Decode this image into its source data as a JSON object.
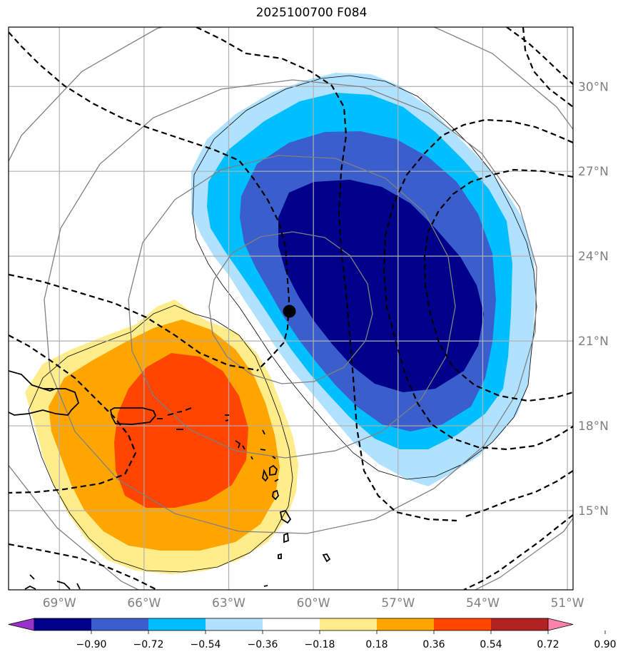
{
  "title": "2025100700 F084",
  "map": {
    "lon_range": [
      -70.8,
      -50.8
    ],
    "lat_range": [
      12.2,
      32.1
    ],
    "lon_ticks": [
      {
        "value": -69,
        "label": "69°W"
      },
      {
        "value": -66,
        "label": "66°W"
      },
      {
        "value": -63,
        "label": "63°W"
      },
      {
        "value": -60,
        "label": "60°W"
      },
      {
        "value": -57,
        "label": "57°W"
      },
      {
        "value": -54,
        "label": "54°W"
      },
      {
        "value": -51,
        "label": "51°W"
      }
    ],
    "lat_ticks": [
      {
        "value": 30,
        "label": "30°N"
      },
      {
        "value": 27,
        "label": "27°N"
      },
      {
        "value": 24,
        "label": "24°N"
      },
      {
        "value": 21,
        "label": "21°N"
      },
      {
        "value": 18,
        "label": "18°N"
      },
      {
        "value": 15,
        "label": "15°N"
      }
    ],
    "storm_center": {
      "lon": -60.85,
      "lat": 22.05
    },
    "colors": {
      "grid": "#b0b0b0",
      "range_rings": "#808080",
      "coast": "#000000",
      "dashed_contours": "#000000"
    }
  },
  "colorbar": {
    "levels": [
      -0.9,
      -0.72,
      -0.54,
      -0.36,
      -0.18,
      0.18,
      0.36,
      0.54,
      0.72,
      0.9
    ],
    "tick_labels": [
      "−0.90",
      "−0.72",
      "−0.54",
      "−0.36",
      "−0.18",
      "0.18",
      "0.36",
      "0.54",
      "0.72",
      "0.90"
    ],
    "colors": [
      "#9932cc",
      "#00008b",
      "#3a5fcd",
      "#00bfff",
      "#b0e2ff",
      "#ffffff",
      "#ffec8b",
      "#ffa500",
      "#ff4500",
      "#b22222",
      "#ff82ab"
    ]
  }
}
